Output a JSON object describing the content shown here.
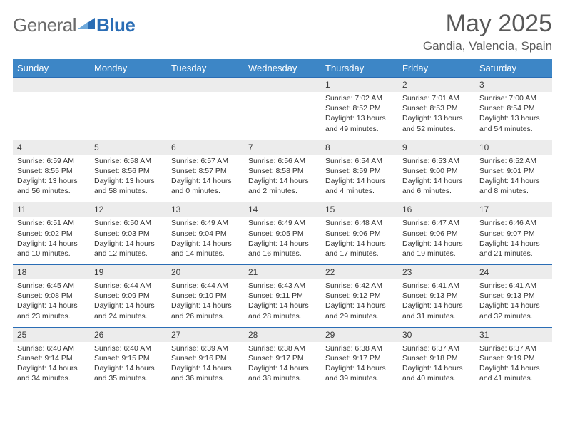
{
  "brand": {
    "text1": "General",
    "text2": "Blue"
  },
  "title": "May 2025",
  "location": "Gandia, Valencia, Spain",
  "colors": {
    "header_bg": "#3d86c6",
    "accent": "#2a6db5",
    "daynum_bg": "#ececec",
    "text": "#333333",
    "title_text": "#595959"
  },
  "weekdays": [
    "Sunday",
    "Monday",
    "Tuesday",
    "Wednesday",
    "Thursday",
    "Friday",
    "Saturday"
  ],
  "weeks": [
    [
      null,
      null,
      null,
      null,
      {
        "n": "1",
        "sr": "7:02 AM",
        "ss": "8:52 PM",
        "dl": "13 hours and 49 minutes."
      },
      {
        "n": "2",
        "sr": "7:01 AM",
        "ss": "8:53 PM",
        "dl": "13 hours and 52 minutes."
      },
      {
        "n": "3",
        "sr": "7:00 AM",
        "ss": "8:54 PM",
        "dl": "13 hours and 54 minutes."
      }
    ],
    [
      {
        "n": "4",
        "sr": "6:59 AM",
        "ss": "8:55 PM",
        "dl": "13 hours and 56 minutes."
      },
      {
        "n": "5",
        "sr": "6:58 AM",
        "ss": "8:56 PM",
        "dl": "13 hours and 58 minutes."
      },
      {
        "n": "6",
        "sr": "6:57 AM",
        "ss": "8:57 PM",
        "dl": "14 hours and 0 minutes."
      },
      {
        "n": "7",
        "sr": "6:56 AM",
        "ss": "8:58 PM",
        "dl": "14 hours and 2 minutes."
      },
      {
        "n": "8",
        "sr": "6:54 AM",
        "ss": "8:59 PM",
        "dl": "14 hours and 4 minutes."
      },
      {
        "n": "9",
        "sr": "6:53 AM",
        "ss": "9:00 PM",
        "dl": "14 hours and 6 minutes."
      },
      {
        "n": "10",
        "sr": "6:52 AM",
        "ss": "9:01 PM",
        "dl": "14 hours and 8 minutes."
      }
    ],
    [
      {
        "n": "11",
        "sr": "6:51 AM",
        "ss": "9:02 PM",
        "dl": "14 hours and 10 minutes."
      },
      {
        "n": "12",
        "sr": "6:50 AM",
        "ss": "9:03 PM",
        "dl": "14 hours and 12 minutes."
      },
      {
        "n": "13",
        "sr": "6:49 AM",
        "ss": "9:04 PM",
        "dl": "14 hours and 14 minutes."
      },
      {
        "n": "14",
        "sr": "6:49 AM",
        "ss": "9:05 PM",
        "dl": "14 hours and 16 minutes."
      },
      {
        "n": "15",
        "sr": "6:48 AM",
        "ss": "9:06 PM",
        "dl": "14 hours and 17 minutes."
      },
      {
        "n": "16",
        "sr": "6:47 AM",
        "ss": "9:06 PM",
        "dl": "14 hours and 19 minutes."
      },
      {
        "n": "17",
        "sr": "6:46 AM",
        "ss": "9:07 PM",
        "dl": "14 hours and 21 minutes."
      }
    ],
    [
      {
        "n": "18",
        "sr": "6:45 AM",
        "ss": "9:08 PM",
        "dl": "14 hours and 23 minutes."
      },
      {
        "n": "19",
        "sr": "6:44 AM",
        "ss": "9:09 PM",
        "dl": "14 hours and 24 minutes."
      },
      {
        "n": "20",
        "sr": "6:44 AM",
        "ss": "9:10 PM",
        "dl": "14 hours and 26 minutes."
      },
      {
        "n": "21",
        "sr": "6:43 AM",
        "ss": "9:11 PM",
        "dl": "14 hours and 28 minutes."
      },
      {
        "n": "22",
        "sr": "6:42 AM",
        "ss": "9:12 PM",
        "dl": "14 hours and 29 minutes."
      },
      {
        "n": "23",
        "sr": "6:41 AM",
        "ss": "9:13 PM",
        "dl": "14 hours and 31 minutes."
      },
      {
        "n": "24",
        "sr": "6:41 AM",
        "ss": "9:13 PM",
        "dl": "14 hours and 32 minutes."
      }
    ],
    [
      {
        "n": "25",
        "sr": "6:40 AM",
        "ss": "9:14 PM",
        "dl": "14 hours and 34 minutes."
      },
      {
        "n": "26",
        "sr": "6:40 AM",
        "ss": "9:15 PM",
        "dl": "14 hours and 35 minutes."
      },
      {
        "n": "27",
        "sr": "6:39 AM",
        "ss": "9:16 PM",
        "dl": "14 hours and 36 minutes."
      },
      {
        "n": "28",
        "sr": "6:38 AM",
        "ss": "9:17 PM",
        "dl": "14 hours and 38 minutes."
      },
      {
        "n": "29",
        "sr": "6:38 AM",
        "ss": "9:17 PM",
        "dl": "14 hours and 39 minutes."
      },
      {
        "n": "30",
        "sr": "6:37 AM",
        "ss": "9:18 PM",
        "dl": "14 hours and 40 minutes."
      },
      {
        "n": "31",
        "sr": "6:37 AM",
        "ss": "9:19 PM",
        "dl": "14 hours and 41 minutes."
      }
    ]
  ],
  "labels": {
    "sunrise": "Sunrise:",
    "sunset": "Sunset:",
    "daylight": "Daylight:"
  }
}
